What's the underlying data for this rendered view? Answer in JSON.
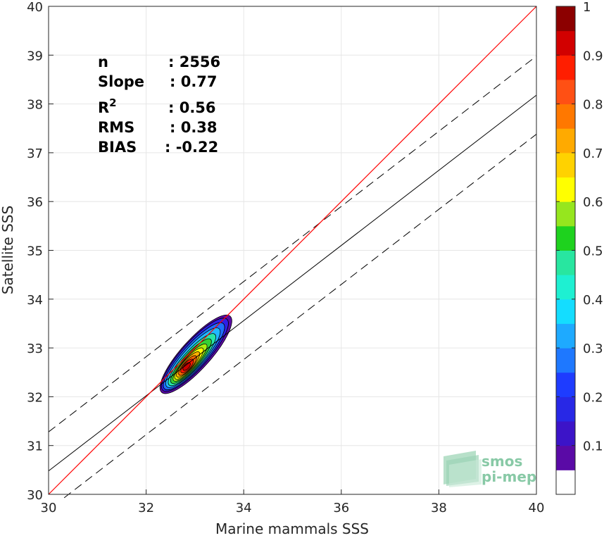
{
  "chart_data": {
    "type": "contour",
    "xlabel": "Marine mammals SSS",
    "ylabel": "Satellite SSS",
    "xlim": [
      30,
      40
    ],
    "ylim": [
      30,
      40
    ],
    "x_ticks": [
      "30",
      "32",
      "34",
      "36",
      "38",
      "40"
    ],
    "y_ticks": [
      "30",
      "31",
      "32",
      "33",
      "34",
      "35",
      "36",
      "37",
      "38",
      "39",
      "40"
    ],
    "grid": true,
    "stats": [
      {
        "label": "n",
        "value": ": 2556"
      },
      {
        "label": "Slope",
        "value": ": 0.77"
      },
      {
        "label": "R",
        "label_sup": "2",
        "value": ": 0.56"
      },
      {
        "label": "RMS",
        "value": ": 0.38"
      },
      {
        "label": "BIAS",
        "value": ": -0.22"
      }
    ],
    "lines": {
      "identity": {
        "color": "#ff0000",
        "points": [
          [
            30,
            30
          ],
          [
            40,
            40
          ]
        ]
      },
      "regression": {
        "color": "#000000",
        "style": "solid",
        "points": [
          [
            30,
            30.48
          ],
          [
            40,
            38.18
          ]
        ]
      },
      "upper_band": {
        "color": "#000000",
        "style": "dashed",
        "points": [
          [
            30,
            31.28
          ],
          [
            40,
            38.98
          ]
        ]
      },
      "lower_band": {
        "color": "#000000",
        "style": "dashed",
        "points": [
          [
            30.32,
            29.93
          ],
          [
            40,
            37.38
          ]
        ]
      }
    },
    "density": {
      "center": [
        32.82,
        32.62
      ],
      "levels": [
        {
          "level": 0.05,
          "color": "#5a0aa6",
          "semi_major": 1.05,
          "semi_minor": 0.3,
          "cx": 33.02,
          "cy": 32.87
        },
        {
          "level": 0.15,
          "color": "#2f1ee6",
          "semi_major": 0.98,
          "semi_minor": 0.27,
          "cx": 33.0,
          "cy": 32.86
        },
        {
          "level": 0.25,
          "color": "#1e6eff",
          "semi_major": 0.9,
          "semi_minor": 0.24,
          "cx": 32.98,
          "cy": 32.83
        },
        {
          "level": 0.35,
          "color": "#21b8ff",
          "semi_major": 0.8,
          "semi_minor": 0.21,
          "cx": 32.96,
          "cy": 32.8
        },
        {
          "level": 0.45,
          "color": "#28e6a6",
          "semi_major": 0.7,
          "semi_minor": 0.18,
          "cx": 32.94,
          "cy": 32.76
        },
        {
          "level": 0.55,
          "color": "#35d035",
          "semi_major": 0.6,
          "semi_minor": 0.155,
          "cx": 32.92,
          "cy": 32.73
        },
        {
          "level": 0.62,
          "color": "#aaee11",
          "semi_major": 0.5,
          "semi_minor": 0.13,
          "cx": 32.9,
          "cy": 32.7
        },
        {
          "level": 0.68,
          "color": "#ffff00",
          "semi_major": 0.42,
          "semi_minor": 0.115,
          "cx": 32.88,
          "cy": 32.68
        },
        {
          "level": 0.75,
          "color": "#ffb000",
          "semi_major": 0.34,
          "semi_minor": 0.1,
          "cx": 32.86,
          "cy": 32.66
        },
        {
          "level": 0.82,
          "color": "#ff6a00",
          "semi_major": 0.26,
          "semi_minor": 0.085,
          "cx": 32.85,
          "cy": 32.64
        },
        {
          "level": 0.9,
          "color": "#ff1a00",
          "semi_major": 0.18,
          "semi_minor": 0.07,
          "cx": 32.84,
          "cy": 32.63
        },
        {
          "level": 0.97,
          "color": "#c80000",
          "semi_major": 0.1,
          "semi_minor": 0.05,
          "cx": 32.83,
          "cy": 32.62
        }
      ]
    },
    "colorbar": {
      "range": [
        0,
        1
      ],
      "ticks": [
        "0.1",
        "0.2",
        "0.3",
        "0.4",
        "0.5",
        "0.6",
        "0.7",
        "0.8",
        "0.9",
        "1"
      ],
      "bands": [
        {
          "from": 0.0,
          "to": 0.05,
          "color": "#ffffff"
        },
        {
          "from": 0.05,
          "to": 0.1,
          "color": "#5a0aa6"
        },
        {
          "from": 0.1,
          "to": 0.15,
          "color": "#3c14c8"
        },
        {
          "from": 0.15,
          "to": 0.2,
          "color": "#2828e6"
        },
        {
          "from": 0.2,
          "to": 0.25,
          "color": "#1e3cff"
        },
        {
          "from": 0.25,
          "to": 0.3,
          "color": "#1e78ff"
        },
        {
          "from": 0.3,
          "to": 0.35,
          "color": "#1eaaff"
        },
        {
          "from": 0.35,
          "to": 0.4,
          "color": "#14ddff"
        },
        {
          "from": 0.4,
          "to": 0.45,
          "color": "#1ef0d2"
        },
        {
          "from": 0.45,
          "to": 0.5,
          "color": "#28e6a0"
        },
        {
          "from": 0.5,
          "to": 0.55,
          "color": "#1ed21e"
        },
        {
          "from": 0.55,
          "to": 0.6,
          "color": "#96e61e"
        },
        {
          "from": 0.6,
          "to": 0.65,
          "color": "#ffff00"
        },
        {
          "from": 0.65,
          "to": 0.7,
          "color": "#ffd200"
        },
        {
          "from": 0.7,
          "to": 0.75,
          "color": "#ffaa00"
        },
        {
          "from": 0.75,
          "to": 0.8,
          "color": "#ff7800"
        },
        {
          "from": 0.8,
          "to": 0.85,
          "color": "#ff5014"
        },
        {
          "from": 0.85,
          "to": 0.9,
          "color": "#ff1e00"
        },
        {
          "from": 0.9,
          "to": 0.95,
          "color": "#d20000"
        },
        {
          "from": 0.95,
          "to": 1.0,
          "color": "#8c0000"
        }
      ]
    }
  },
  "logo": {
    "line1": "smos",
    "line2": "pi-mep"
  }
}
